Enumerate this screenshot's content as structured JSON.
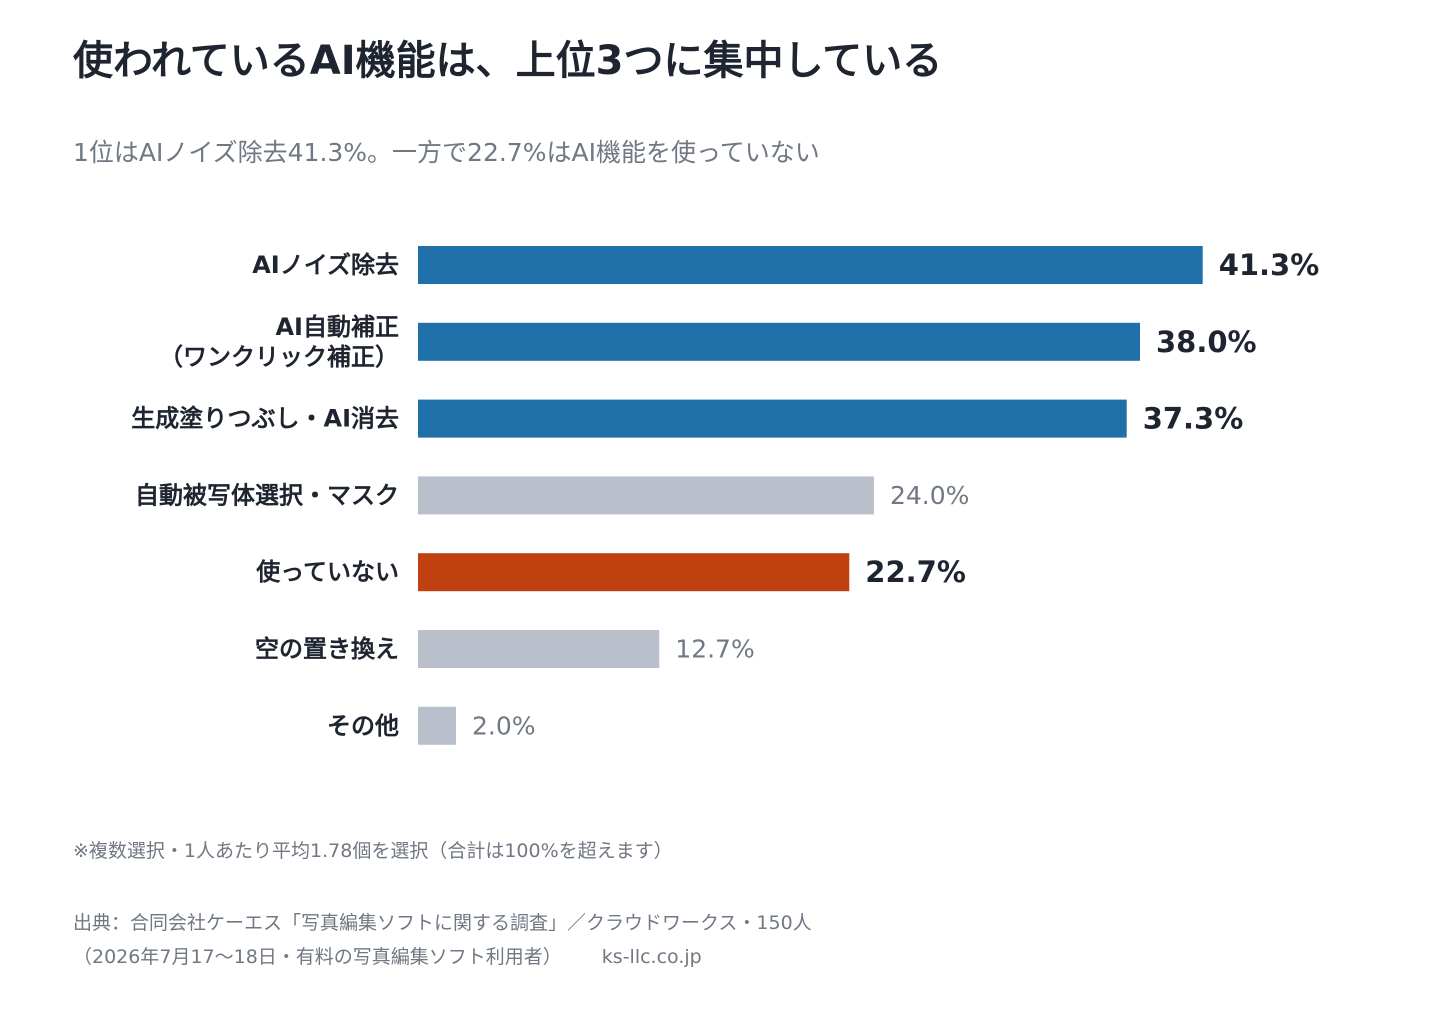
{
  "title": "使われているAI機能は、上位3つに集中している",
  "subtitle": "1位はAIノイズ除去41.3%。一方で22.7%はAI機能を使っていない",
  "note": "※複数選択・1人あたり平均1.78個を選択（合計は100%を超えます）",
  "source": {
    "line1": "出典：合同会社ケーエス「写真編集ソフトに関する調査」／クラウドワークス・150人",
    "line2": "（2026年7月17〜18日・有料の写真編集ソフト利用者）",
    "url": "ks-llc.co.jp"
  },
  "colors": {
    "highlight": "#1f6fa8",
    "neutral": "#b9c0cb",
    "alert": "#c0410f"
  },
  "chart_data": {
    "type": "bar",
    "orientation": "horizontal",
    "categories": [
      [
        "AIノイズ除去"
      ],
      [
        "AI自動補正",
        "（ワンクリック補正）"
      ],
      [
        "生成塗りつぶし・AI消去"
      ],
      [
        "自動被写体選択・マスク"
      ],
      [
        "使っていない"
      ],
      [
        "空の置き換え"
      ],
      [
        "その他"
      ]
    ],
    "values": [
      41.3,
      38.0,
      37.3,
      24.0,
      22.7,
      12.7,
      2.0
    ],
    "value_labels": [
      "41.3%",
      "38.0%",
      "37.3%",
      "24.0%",
      "22.7%",
      "12.7%",
      "2.0%"
    ],
    "bar_styles": [
      "highlight",
      "highlight",
      "highlight",
      "neutral",
      "alert",
      "neutral",
      "neutral"
    ],
    "xlim": [
      0,
      100
    ],
    "grid": false,
    "legend": "none"
  }
}
